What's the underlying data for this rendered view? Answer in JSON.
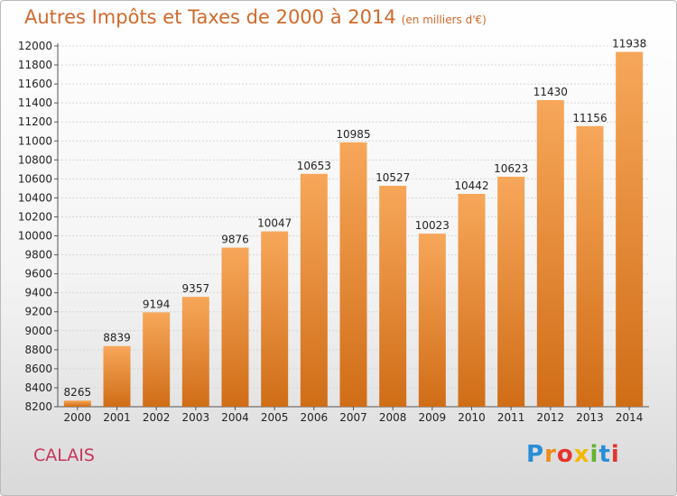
{
  "chart_data": {
    "type": "bar",
    "title": "Autres Impôts et Taxes de 2000 à 2014",
    "unit": "(en milliers d'€)",
    "categories": [
      "2000",
      "2001",
      "2002",
      "2003",
      "2004",
      "2005",
      "2006",
      "2007",
      "2008",
      "2009",
      "2010",
      "2011",
      "2012",
      "2013",
      "2014"
    ],
    "values": [
      8265,
      8839,
      9194,
      9357,
      9876,
      10047,
      10653,
      10985,
      10527,
      10023,
      10442,
      10623,
      11430,
      11156,
      11938
    ],
    "ylim": [
      8200,
      12000
    ],
    "yticks": [
      8200,
      8400,
      8600,
      8800,
      9000,
      9200,
      9400,
      9600,
      9800,
      10000,
      10200,
      10400,
      10600,
      10800,
      11000,
      11200,
      11400,
      11600,
      11800,
      12000
    ],
    "grid": true,
    "bar_color_top": "#f7a75a",
    "bar_color_bottom": "#d06d17"
  },
  "footer": {
    "city": "CALAIS",
    "logo_letters": [
      "P",
      "r",
      "o",
      "x",
      "i",
      "t",
      "i"
    ],
    "logo_colors": [
      "#2a8ed6",
      "#f08c1c",
      "#e3342f",
      "#f5b800",
      "#65b32e",
      "#2a8ed6",
      "#e3342f"
    ]
  }
}
